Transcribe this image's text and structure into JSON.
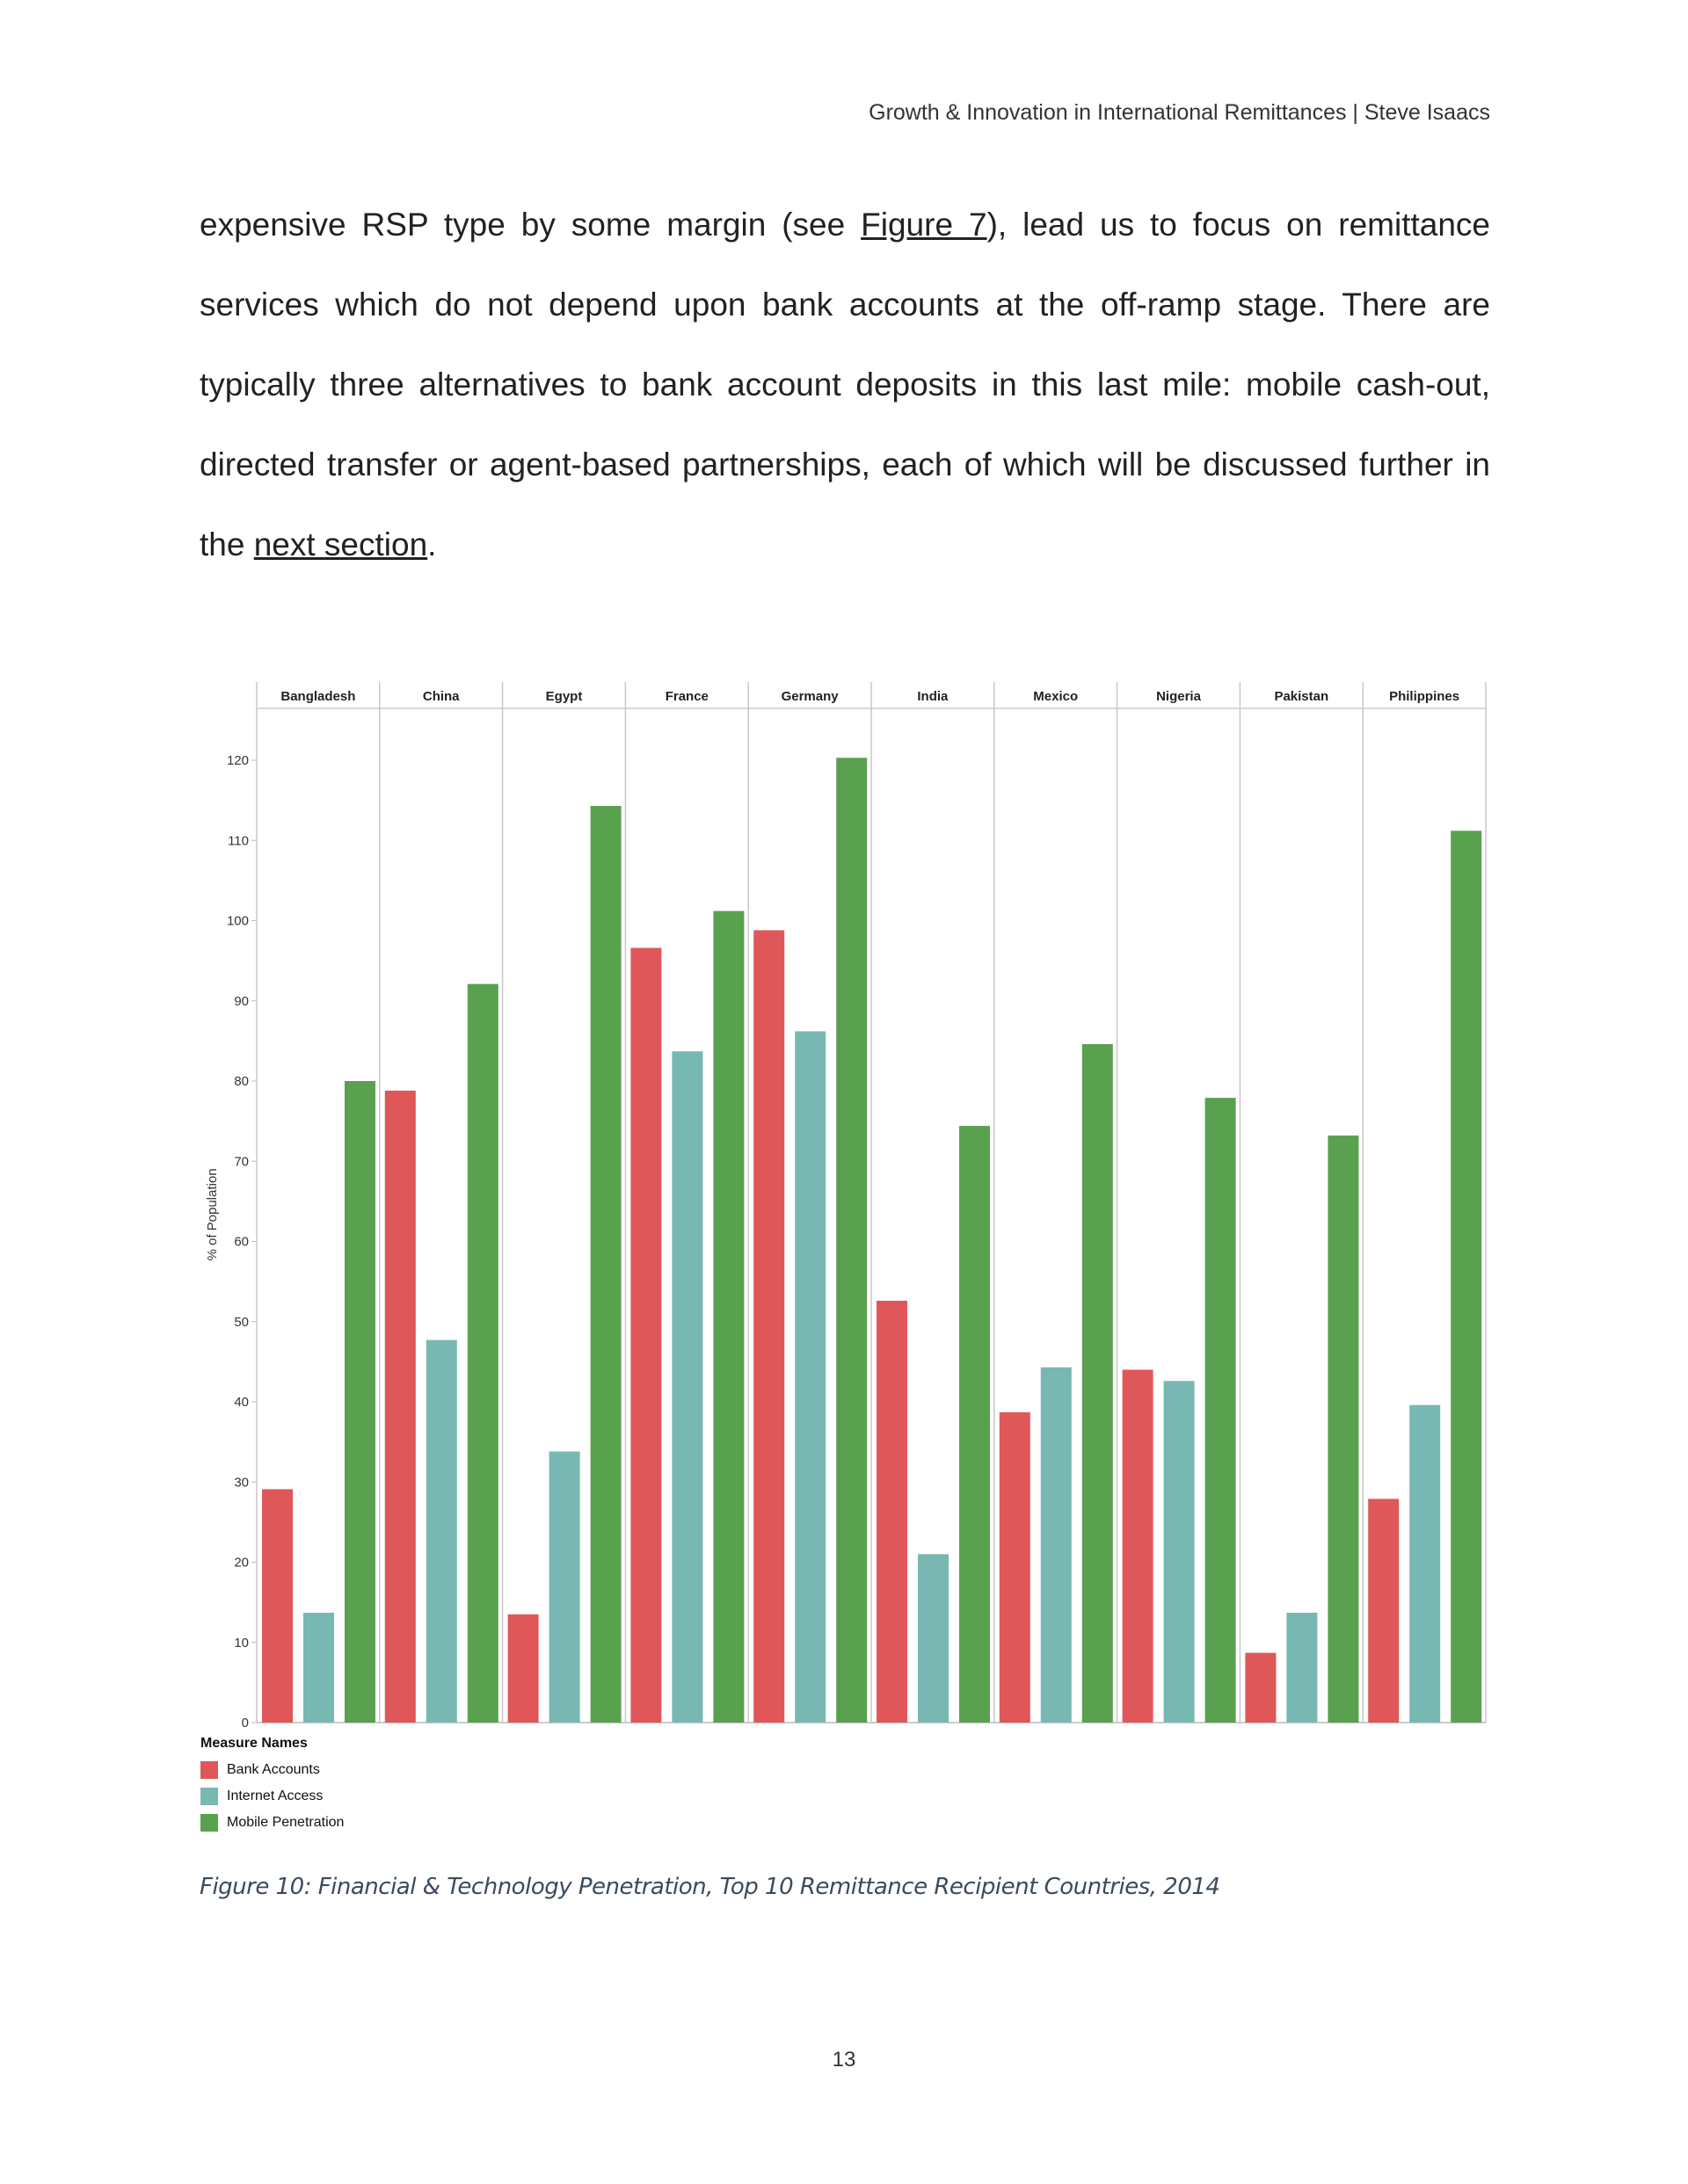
{
  "header": {
    "running_title": "Growth & Innovation in International Remittances | Steve Isaacs"
  },
  "body": {
    "part1": "expensive RSP type by some margin (see ",
    "link1": "Figure 7",
    "part2": "), lead us to focus on remittance services which do not depend upon bank accounts at the off-ramp stage. There are typically three alternatives to bank account deposits in this last mile: mobile cash-out, directed transfer or agent-based partnerships, each of which will be discussed further in the ",
    "link2": "next section",
    "part3": "."
  },
  "chart_data": {
    "type": "bar",
    "categories": [
      "Bangladesh",
      "China",
      "Egypt",
      "France",
      "Germany",
      "India",
      "Mexico",
      "Nigeria",
      "Pakistan",
      "Philippines"
    ],
    "series": [
      {
        "name": "Bank Accounts",
        "color": "#e05759",
        "values": [
          29.1,
          78.8,
          13.5,
          96.6,
          98.8,
          52.6,
          38.7,
          44.0,
          8.7,
          27.9
        ]
      },
      {
        "name": "Internet Access",
        "color": "#77b8b2",
        "values": [
          13.7,
          47.7,
          33.8,
          83.7,
          86.2,
          21.0,
          44.3,
          42.6,
          13.7,
          39.6
        ]
      },
      {
        "name": "Mobile Penetration",
        "color": "#59a14f",
        "values": [
          80.0,
          92.1,
          114.3,
          101.2,
          120.3,
          74.4,
          84.6,
          77.9,
          73.2,
          111.2
        ]
      }
    ],
    "ylabel": "% of Population",
    "yticks": [
      0,
      10,
      20,
      30,
      40,
      50,
      60,
      70,
      80,
      90,
      100,
      110,
      120
    ],
    "ylim": [
      0,
      128
    ],
    "legend_title": "Measure Names",
    "legend_position": "bottom-left",
    "grid": false
  },
  "caption": "Figure 10: Financial & Technology Penetration, Top 10 Remittance Recipient Countries, 2014",
  "page_number": "13"
}
